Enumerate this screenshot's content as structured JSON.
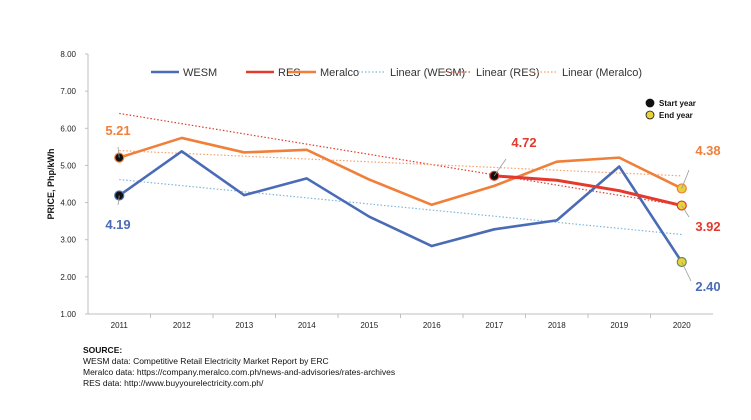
{
  "chart_data": {
    "type": "line",
    "title": "",
    "xlabel": "",
    "ylabel": "PRICE, Php/kWh",
    "ylim": [
      1,
      8
    ],
    "yticks": [
      "1.00",
      "2.00",
      "3.00",
      "4.00",
      "5.00",
      "6.00",
      "7.00",
      "8.00"
    ],
    "categories": [
      "2011",
      "2012",
      "2013",
      "2014",
      "2015",
      "2016",
      "2017",
      "2018",
      "2019",
      "2020"
    ],
    "grid": false,
    "legend_position": "top",
    "series": [
      {
        "name": "WESM",
        "color": "#4a6bb5",
        "style": "solid",
        "values": [
          4.19,
          5.38,
          4.2,
          4.65,
          3.62,
          2.83,
          3.28,
          3.52,
          4.97,
          2.4
        ]
      },
      {
        "name": "RES",
        "color": "#e23a2c",
        "style": "solid",
        "values": [
          null,
          null,
          null,
          null,
          null,
          null,
          4.72,
          4.6,
          4.32,
          3.92
        ]
      },
      {
        "name": "Meralco",
        "color": "#f07f3a",
        "style": "solid",
        "values": [
          5.21,
          5.74,
          5.35,
          5.42,
          4.62,
          3.94,
          4.45,
          5.1,
          5.21,
          4.38
        ]
      },
      {
        "name": "Linear (WESM)",
        "color": "#7fb6dd",
        "style": "dotted",
        "trend_of": "WESM"
      },
      {
        "name": "Linear (RES)",
        "color": "#e23a2c",
        "style": "dotted",
        "trend_of": "RES"
      },
      {
        "name": "Linear (Meralco)",
        "color": "#f5a06a",
        "style": "dotted",
        "trend_of": "Meralco"
      }
    ],
    "trendlines": [
      {
        "series": "WESM",
        "from": [
          "2011",
          4.62
        ],
        "to": [
          "2020",
          3.14
        ]
      },
      {
        "series": "RES",
        "from": [
          "2011",
          6.4
        ],
        "to": [
          "2020",
          3.92
        ]
      },
      {
        "series": "Meralco",
        "from": [
          "2011",
          5.4
        ],
        "to": [
          "2020",
          4.72
        ]
      }
    ],
    "marker_legend": [
      {
        "label": "Start year",
        "fill": "#111111"
      },
      {
        "label": "End year",
        "fill": "#e8d23a"
      }
    ],
    "annotations": [
      {
        "text": "5.21",
        "x": "2011",
        "y": 5.21,
        "color": "#f07f3a",
        "marker": "start",
        "marker_fill": "#111111",
        "marker_stroke": "#f07f3a"
      },
      {
        "text": "4.19",
        "x": "2011",
        "y": 4.19,
        "color": "#4a6bb5",
        "marker": "start",
        "marker_fill": "#111111",
        "marker_stroke": "#4a6bb5"
      },
      {
        "text": "4.72",
        "x": "2017",
        "y": 4.72,
        "color": "#e23a2c",
        "marker": "start",
        "marker_fill": "#111111",
        "marker_stroke": "#e23a2c"
      },
      {
        "text": "4.38",
        "x": "2020",
        "y": 4.38,
        "color": "#f07f3a",
        "marker": "end",
        "marker_fill": "#e8d23a",
        "marker_stroke": "#f07f3a"
      },
      {
        "text": "3.92",
        "x": "2020",
        "y": 3.92,
        "color": "#e23a2c",
        "marker": "end",
        "marker_fill": "#e8d23a",
        "marker_stroke": "#e23a2c"
      },
      {
        "text": "2.40",
        "x": "2020",
        "y": 2.4,
        "color": "#4a6bb5",
        "marker": "end",
        "marker_fill": "#e8d23a",
        "marker_stroke": "#6a8a5a"
      }
    ]
  },
  "source": {
    "title": "SOURCE:",
    "lines": [
      "WESM data: Competitive Retail Electricity Market Report by ERC",
      "Meralco data: https://company.meralco.com.ph/news-and-advisories/rates-archives",
      "RES data: http://www.buyyourelectricity.com.ph/"
    ]
  }
}
